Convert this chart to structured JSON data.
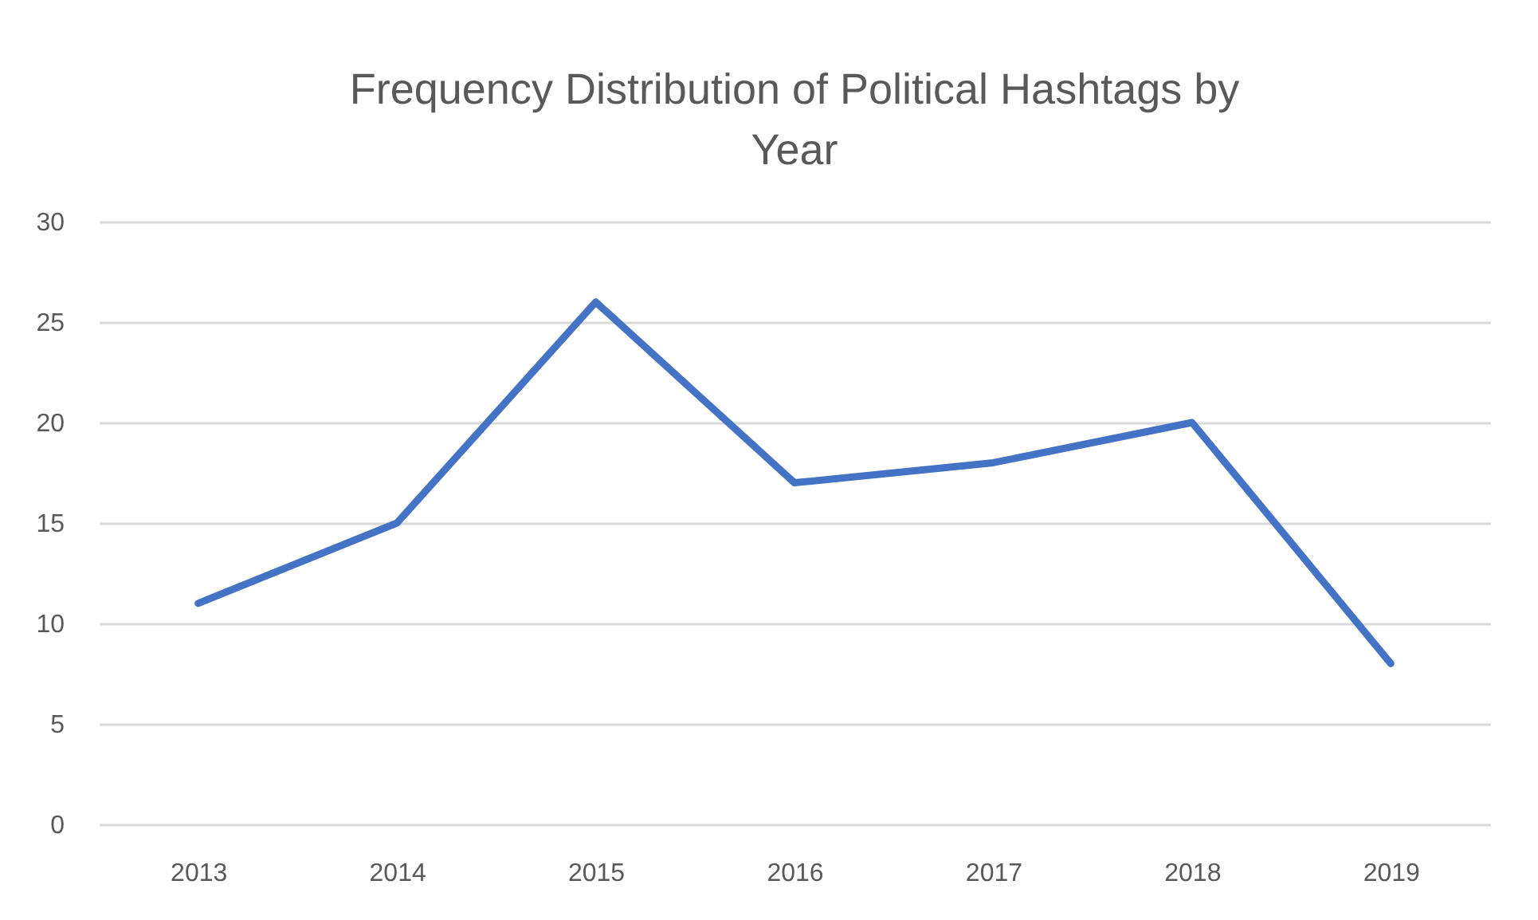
{
  "chart_data": {
    "type": "line",
    "title": "Frequency Distribution of Political Hashtags by Year",
    "categories": [
      "2013",
      "2014",
      "2015",
      "2016",
      "2017",
      "2018",
      "2019"
    ],
    "series": [
      {
        "color": "#4472c4",
        "values": [
          11,
          15,
          26,
          17,
          18,
          20,
          8
        ]
      }
    ],
    "ylim": [
      0,
      30
    ],
    "yticks": [
      0,
      5,
      10,
      15,
      20,
      25,
      30
    ],
    "grid": "y",
    "marker": "none",
    "line_style": "solid"
  }
}
